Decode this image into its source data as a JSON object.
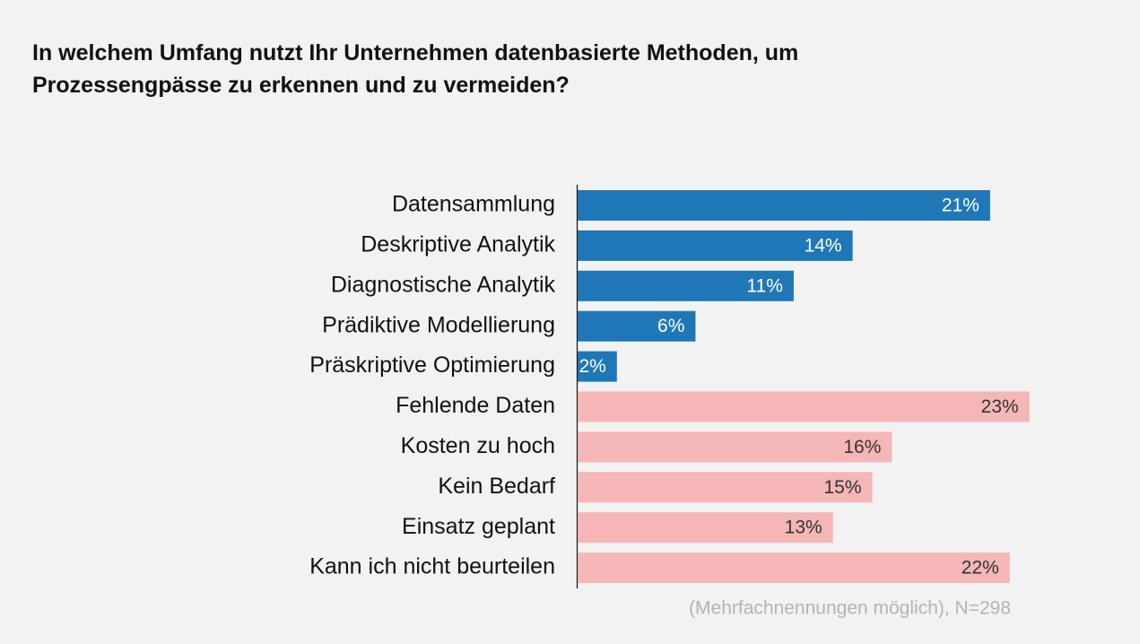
{
  "chart_data": {
    "type": "bar",
    "orientation": "horizontal",
    "title": "In welchem Umfang nutzt Ihr Unternehmen datenbasierte Methoden, um Prozessengpässe zu erkennen und zu vermeiden?",
    "categories": [
      "Datensammlung",
      "Deskriptive Analytik",
      "Diagnostische Analytik",
      "Prädiktive Modellierung",
      "Präskriptive Optimierung",
      "Fehlende Daten",
      "Kosten zu hoch",
      "Kein Bedarf",
      "Einsatz geplant",
      "Kann ich nicht beurteilen"
    ],
    "values": [
      21,
      14,
      11,
      6,
      2,
      23,
      16,
      15,
      13,
      22
    ],
    "value_labels": [
      "21%",
      "14%",
      "11%",
      "6%",
      "2%",
      "23%",
      "16%",
      "15%",
      "13%",
      "22%"
    ],
    "colors": [
      "#2077b8",
      "#2077b8",
      "#2077b8",
      "#2077b8",
      "#2077b8",
      "#f4b6b6",
      "#f4b6b6",
      "#f4b6b6",
      "#f4b6b6",
      "#f4b6b6"
    ],
    "label_colors": [
      "#ffffff",
      "#ffffff",
      "#ffffff",
      "#ffffff",
      "#ffffff",
      "#333333",
      "#333333",
      "#333333",
      "#333333",
      "#333333"
    ],
    "footnote": "(Mehrfachnennungen möglich), N=298"
  }
}
